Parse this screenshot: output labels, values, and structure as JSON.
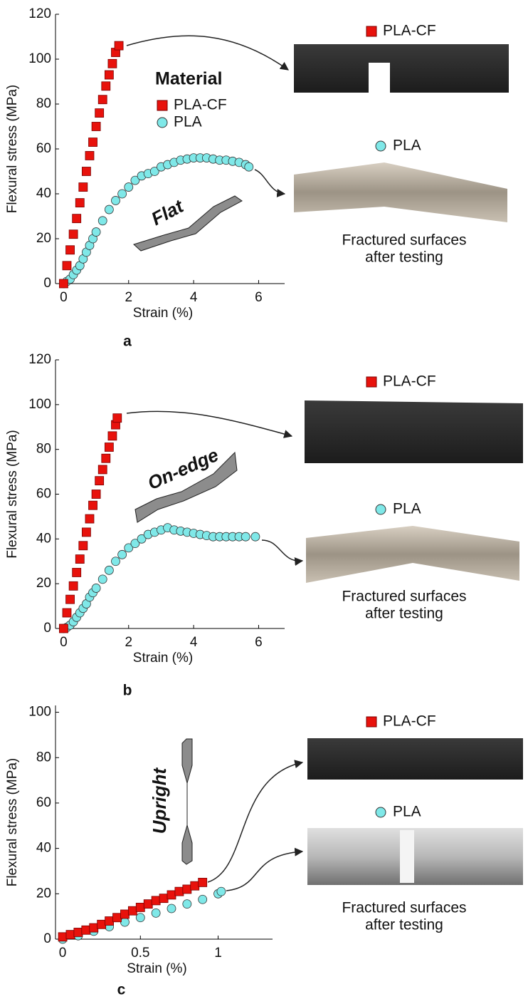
{
  "chart_data": [
    {
      "type": "scatter",
      "label": "a",
      "orientation": "Flat",
      "legend_title": "Material",
      "photo_caption": [
        "Fractured surfaces",
        "after testing"
      ],
      "x_label": "Strain (%)",
      "y_label": "Flexural stress (MPa)",
      "xlim": [
        -0.25,
        6.8
      ],
      "xticks": [
        0,
        2,
        4,
        6
      ],
      "ylim": [
        0,
        120
      ],
      "yticks": [
        0,
        20,
        40,
        60,
        80,
        100,
        120
      ],
      "series": [
        {
          "name": "PLA-CF",
          "color": "#e8120c",
          "marker": "square",
          "x": [
            0,
            0.1,
            0.2,
            0.3,
            0.4,
            0.5,
            0.6,
            0.7,
            0.8,
            0.9,
            1.0,
            1.1,
            1.2,
            1.3,
            1.4,
            1.5,
            1.6,
            1.7
          ],
          "values": [
            0,
            8,
            15,
            22,
            29,
            36,
            43,
            50,
            57,
            63,
            70,
            76,
            82,
            88,
            93,
            98,
            103,
            106
          ]
        },
        {
          "name": "PLA",
          "color": "#7fe8e8",
          "marker": "circle",
          "x": [
            0,
            0.1,
            0.2,
            0.3,
            0.4,
            0.5,
            0.6,
            0.7,
            0.8,
            0.9,
            1.0,
            1.2,
            1.4,
            1.6,
            1.8,
            2.0,
            2.2,
            2.4,
            2.6,
            2.8,
            3.0,
            3.2,
            3.4,
            3.6,
            3.8,
            4.0,
            4.2,
            4.4,
            4.6,
            4.8,
            5.0,
            5.2,
            5.4,
            5.6,
            5.7
          ],
          "values": [
            0,
            1,
            2,
            4,
            6,
            8,
            11,
            14,
            17,
            20,
            23,
            28,
            33,
            37,
            40,
            43,
            46,
            48,
            49,
            50,
            52,
            53,
            54,
            55,
            55.5,
            56,
            56,
            56,
            55.5,
            55,
            55,
            54.5,
            54,
            53,
            52
          ]
        }
      ]
    },
    {
      "type": "scatter",
      "label": "b",
      "orientation": "On-edge",
      "photo_caption": [
        "Fractured surfaces",
        "after testing"
      ],
      "x_label": "Strain (%)",
      "y_label": "Flexural stress (MPa)",
      "xlim": [
        -0.25,
        6.8
      ],
      "xticks": [
        0,
        2,
        4,
        6
      ],
      "ylim": [
        0,
        120
      ],
      "yticks": [
        0,
        20,
        40,
        60,
        80,
        100,
        120
      ],
      "series": [
        {
          "name": "PLA-CF",
          "color": "#e8120c",
          "marker": "square",
          "x": [
            0,
            0.1,
            0.2,
            0.3,
            0.4,
            0.5,
            0.6,
            0.7,
            0.8,
            0.9,
            1.0,
            1.1,
            1.2,
            1.3,
            1.4,
            1.5,
            1.6,
            1.65
          ],
          "values": [
            0,
            7,
            13,
            19,
            25,
            31,
            37,
            43,
            49,
            55,
            60,
            66,
            71,
            76,
            81,
            86,
            91,
            94
          ]
        },
        {
          "name": "PLA",
          "color": "#7fe8e8",
          "marker": "circle",
          "x": [
            0,
            0.1,
            0.2,
            0.3,
            0.4,
            0.5,
            0.6,
            0.7,
            0.8,
            0.9,
            1.0,
            1.2,
            1.4,
            1.6,
            1.8,
            2.0,
            2.2,
            2.4,
            2.6,
            2.8,
            3.0,
            3.2,
            3.4,
            3.6,
            3.8,
            4.0,
            4.2,
            4.4,
            4.6,
            4.8,
            5.0,
            5.2,
            5.4,
            5.6,
            5.9
          ],
          "values": [
            0,
            0.5,
            1.5,
            3,
            5,
            7,
            9,
            11,
            14,
            16,
            18,
            22,
            26,
            30,
            33,
            36,
            38,
            40,
            42,
            43,
            44,
            45,
            44,
            43.5,
            43,
            42.5,
            42,
            41.5,
            41,
            41,
            41,
            41,
            41,
            41,
            41
          ]
        }
      ]
    },
    {
      "type": "scatter",
      "label": "c",
      "orientation": "Upright",
      "photo_caption": [
        "Fractured surfaces",
        "after testing"
      ],
      "x_label": "Strain (%)",
      "y_label": "Flexural stress (MPa)",
      "xlim": [
        -0.046,
        1.35
      ],
      "xticks": [
        0,
        0.5,
        1
      ],
      "ylim": [
        0,
        103
      ],
      "yticks": [
        0,
        20,
        40,
        60,
        80,
        100
      ],
      "series": [
        {
          "name": "PLA-CF",
          "color": "#e8120c",
          "marker": "square",
          "x": [
            0,
            0.05,
            0.1,
            0.15,
            0.2,
            0.25,
            0.3,
            0.35,
            0.4,
            0.45,
            0.5,
            0.55,
            0.6,
            0.65,
            0.7,
            0.75,
            0.8,
            0.85,
            0.9
          ],
          "values": [
            1,
            2,
            3,
            4,
            5,
            6.5,
            8,
            9.5,
            11,
            12.5,
            14,
            15.5,
            17,
            18,
            19.5,
            21,
            22,
            23.5,
            25
          ]
        },
        {
          "name": "PLA",
          "color": "#7fe8e8",
          "marker": "circle",
          "x": [
            0,
            0.1,
            0.2,
            0.3,
            0.4,
            0.5,
            0.6,
            0.7,
            0.8,
            0.9,
            1.0,
            1.02
          ],
          "values": [
            0,
            1.5,
            3.5,
            5.5,
            7.5,
            9.5,
            11.5,
            13.5,
            15.5,
            17.5,
            20,
            21
          ]
        }
      ]
    }
  ]
}
